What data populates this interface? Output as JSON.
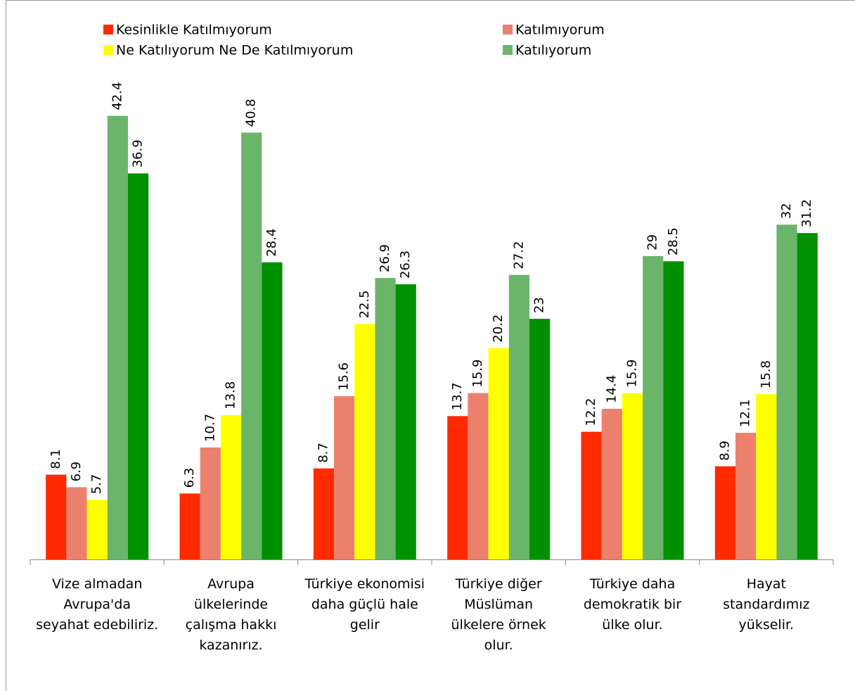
{
  "chart_data": {
    "type": "bar",
    "categories": [
      "Vize almadan Avrupa'da seyahat edebiliriz.",
      "Avrupa ülkelerinde çalışma hakkı kazanırız.",
      "Türkiye ekonomisi daha güçlü hale gelir",
      "Türkiye diğer Müslüman ülkelere örnek olur.",
      "Türkiye daha demokratik bir ülke olur.",
      "Hayat standardımız yükselir."
    ],
    "series": [
      {
        "name": "Kesinlikle Katılmıyorum",
        "color": "#ff2a00",
        "values": [
          8.1,
          6.3,
          8.7,
          13.7,
          12.2,
          8.9
        ]
      },
      {
        "name": "Katılmıyorum",
        "color": "#eb806c",
        "values": [
          6.9,
          10.7,
          15.6,
          15.9,
          14.4,
          12.1
        ]
      },
      {
        "name": "Ne Katılıyorum Ne De Katılmıyorum",
        "color": "#ffff00",
        "values": [
          5.7,
          13.8,
          22.5,
          20.2,
          15.9,
          15.8
        ]
      },
      {
        "name": "Katılıyorum",
        "color": "#6ab56a",
        "values": [
          42.4,
          40.8,
          26.9,
          27.2,
          29,
          32
        ]
      },
      {
        "color": "#019100",
        "values": [
          36.9,
          28.4,
          26.3,
          23,
          28.5,
          31.2
        ]
      }
    ],
    "ylim": [
      0,
      45
    ]
  }
}
